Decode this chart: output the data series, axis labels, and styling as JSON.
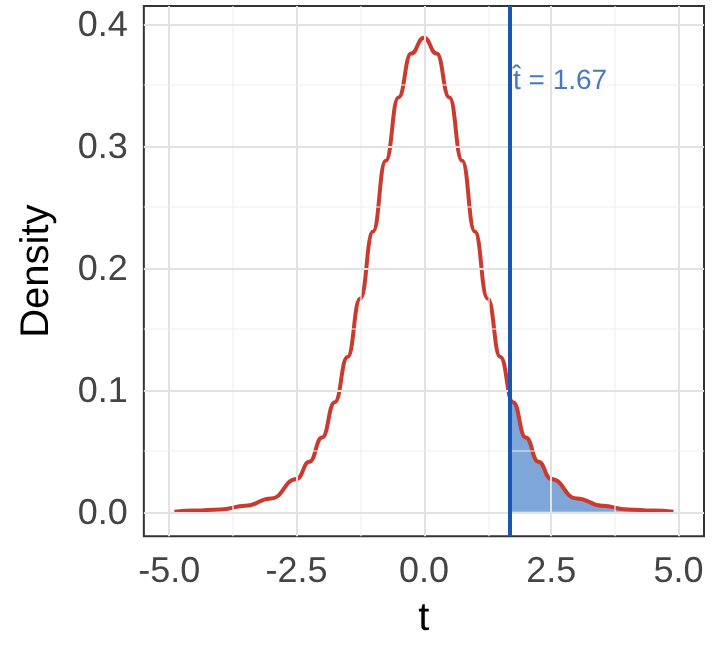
{
  "chart_data": {
    "type": "line",
    "xlabel": "t",
    "ylabel": "Density",
    "series": [
      {
        "color": "#cb3a2e",
        "x": [
          -4.9,
          -4.5,
          -4,
          -3.5,
          -3,
          -2.5,
          -2.25,
          -2,
          -1.75,
          -1.5,
          -1.25,
          -1,
          -0.75,
          -0.5,
          -0.25,
          0,
          0.25,
          0.5,
          0.75,
          1,
          1.25,
          1.5,
          1.75,
          2,
          2.25,
          2.5,
          3,
          3.5,
          4,
          4.5,
          4.9
        ],
        "values": [
          0.0,
          0.001,
          0.002,
          0.005,
          0.011,
          0.027,
          0.041,
          0.061,
          0.09,
          0.127,
          0.175,
          0.23,
          0.288,
          0.34,
          0.376,
          0.389,
          0.376,
          0.34,
          0.288,
          0.23,
          0.175,
          0.127,
          0.09,
          0.061,
          0.041,
          0.027,
          0.011,
          0.005,
          0.002,
          0.001,
          0.0
        ]
      },
      {
        "type": "area",
        "color": "#7ea6d8",
        "x": [
          1.67,
          1.75,
          2,
          2.25,
          2.5,
          3,
          3.5,
          4,
          4.5,
          4.9
        ],
        "values": [
          0.101,
          0.09,
          0.061,
          0.041,
          0.027,
          0.011,
          0.005,
          0.002,
          0.001,
          0.0
        ]
      }
    ],
    "xlim": [
      -5.5,
      5.5
    ],
    "xticks": [
      {
        "value": -5,
        "label": "-5.0"
      },
      {
        "value": -2.5,
        "label": "-2.5"
      },
      {
        "value": 0,
        "label": "0.0"
      },
      {
        "value": 2.5,
        "label": "2.5"
      },
      {
        "value": 5,
        "label": "5.0"
      }
    ],
    "ylim": [
      -0.02,
      0.415
    ],
    "yticks": [
      {
        "value": 0,
        "label": "0.0"
      },
      {
        "value": 0.1,
        "label": "0.1"
      },
      {
        "value": 0.2,
        "label": "0.2"
      },
      {
        "value": 0.3,
        "label": "0.3"
      },
      {
        "value": 0.4,
        "label": "0.4"
      }
    ],
    "ref_lines": [
      {
        "axis": "x",
        "value": 1.67,
        "color": "#1a56b0",
        "line_style": "solid"
      }
    ],
    "annotations": [
      {
        "text": "t̂ = 1.67",
        "x": 1.67,
        "y": 0.355
      }
    ],
    "grid": true,
    "marker": "none",
    "line_style": "solid"
  }
}
